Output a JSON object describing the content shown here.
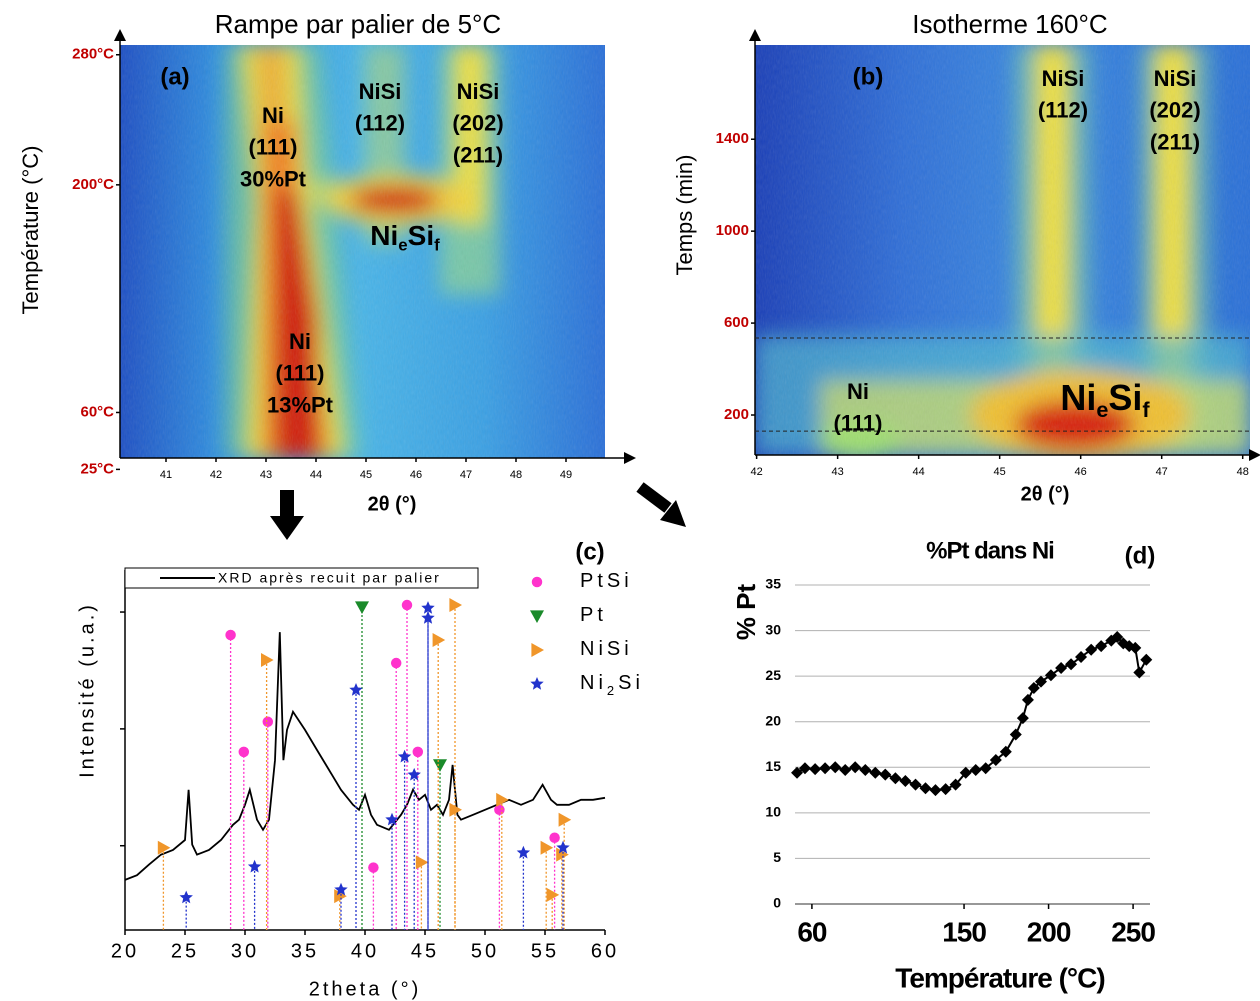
{
  "chart_data": [
    {
      "type": "heatmap",
      "title": "Rampe par palier de 5°C",
      "panel_label": "(a)",
      "x_label": "2θ (°)",
      "y_label": "Température (°C)",
      "xlim": [
        40.08,
        49.78
      ],
      "xticks": [
        41,
        42,
        43,
        44,
        45,
        46,
        47,
        48,
        49
      ],
      "ylim": [
        32,
        286
      ],
      "yticks": [
        {
          "value": 280,
          "label": "280°C"
        },
        {
          "value": 200,
          "label": "200°C"
        },
        {
          "value": 60,
          "label": "60°C"
        },
        {
          "value": 25,
          "label": "25°C"
        }
      ],
      "annotations": [
        {
          "lines": [
            "Ni",
            "(111)",
            "30%Pt"
          ]
        },
        {
          "lines": [
            "NiSi",
            "(112)"
          ]
        },
        {
          "lines": [
            "NiSi",
            "(202)",
            "(211)"
          ]
        },
        {
          "parts": [
            "Ni",
            "e",
            "Si",
            "f"
          ]
        },
        {
          "lines": [
            "Ni",
            "(111)",
            "13%Pt"
          ]
        }
      ]
    },
    {
      "type": "heatmap",
      "title": "Isotherme 160°C",
      "panel_label": "(b)",
      "x_label": "2θ (°)",
      "y_label": "Temps (min)",
      "xlim": [
        41.98,
        48.09
      ],
      "xticks": [
        42,
        43,
        44,
        45,
        46,
        47,
        48
      ],
      "ylim": [
        26,
        1810
      ],
      "yticks": [
        200,
        600,
        1000,
        1400
      ],
      "hlines": [
        535,
        130
      ],
      "annotations": [
        {
          "lines": [
            "NiSi",
            "(112)"
          ]
        },
        {
          "lines": [
            "NiSi",
            "(202)",
            "(211)"
          ]
        },
        {
          "lines": [
            "Ni",
            "(111)"
          ]
        },
        {
          "parts": [
            "Ni",
            "e",
            "Si",
            "f"
          ]
        }
      ]
    },
    {
      "type": "line",
      "panel_label": "(c)",
      "x_label": "2theta (°)",
      "y_label": "Intensité (u.a.)",
      "log_y": true,
      "ytick_labels": false,
      "xlim": [
        20,
        60
      ],
      "xticks": [
        20,
        25,
        30,
        35,
        40,
        45,
        50,
        55,
        60
      ],
      "ylim": [
        1.9,
        2290
      ],
      "yticks": [
        10,
        100,
        1000
      ],
      "series": [
        {
          "name": "XRD après recuit par palier",
          "color": "#000000",
          "x": [
            20,
            21,
            22,
            23,
            24,
            25,
            25.3,
            25.6,
            26,
            27,
            28,
            29,
            29.5,
            30,
            30.4,
            31,
            31.5,
            32,
            32.5,
            32.9,
            33.2,
            33.5,
            34,
            35,
            36,
            37,
            38,
            39,
            39.5,
            40,
            40.5,
            41,
            42,
            43,
            43.5,
            44,
            44.5,
            45,
            45.5,
            46,
            46.5,
            47,
            47.3,
            47.7,
            48,
            49,
            50,
            51,
            52,
            53,
            54,
            54.8,
            55.5,
            56,
            57,
            58,
            59,
            60
          ],
          "values": [
            5.1,
            5.6,
            6.9,
            8.4,
            9.2,
            11.2,
            30.1,
            10.2,
            8.4,
            9.2,
            11.2,
            15.1,
            16.7,
            22.4,
            30.1,
            16.7,
            13.7,
            16.7,
            54,
            674,
            54,
            98,
            140,
            98,
            66,
            44.6,
            30.1,
            22.4,
            20.3,
            27.3,
            18.4,
            15.1,
            13.7,
            18.4,
            22.4,
            30.1,
            24.7,
            27.3,
            20.3,
            22.4,
            18.4,
            24.7,
            49.2,
            18.4,
            16.7,
            18.4,
            20.3,
            22.4,
            24.7,
            22.4,
            24.7,
            33.2,
            24.7,
            22.4,
            22.4,
            24.7,
            24.7,
            25.7
          ]
        },
        {
          "name": "PtSi",
          "color": "#ff33cc",
          "marker": "circle",
          "drop_lines": true,
          "x": [
            28.8,
            29.9,
            31.9,
            40.7,
            42.6,
            43.5,
            44.4,
            51.2,
            55.8
          ],
          "values": [
            636,
            63.6,
            115,
            6.5,
            366,
            1148,
            63.6,
            20.3,
            11.7
          ]
        },
        {
          "name": "Pt",
          "color": "#1a8a2a",
          "marker": "triangle-down",
          "drop_lines": true,
          "x": [
            39.75,
            46.25
          ],
          "values": [
            1104,
            49.2
          ]
        },
        {
          "name": "NiSi",
          "color": "#f0962a",
          "marker": "triangle-right",
          "drop_lines": true,
          "x": [
            23.2,
            31.8,
            37.9,
            44.7,
            46.1,
            47.5,
            47.5,
            51.4,
            55.1,
            55.6,
            56.6,
            56.4
          ],
          "values": [
            9.6,
            389,
            3.7,
            7.2,
            576,
            1148,
            20.3,
            24.7,
            9.6,
            3.8,
            16.7,
            8.4
          ]
        },
        {
          "name": "Ni2Si",
          "color": "#2233cc",
          "marker": "star",
          "drop_lines": true,
          "x": [
            25.1,
            30.8,
            38.0,
            39.25,
            42.25,
            43.3,
            44.1,
            45.25,
            45.25,
            53.2,
            56.5
          ],
          "values": [
            3.6,
            6.6,
            4.2,
            215,
            16.7,
            57.7,
            40.4,
            1081,
            889,
            8.7,
            9.6
          ]
        }
      ]
    },
    {
      "type": "line",
      "title": "%Pt dans Ni",
      "panel_label": "(d)",
      "x_label": "Température (°C)",
      "y_label": "% Pt",
      "grid": true,
      "xlim": [
        50,
        260
      ],
      "xticks": [
        60,
        150,
        200,
        250
      ],
      "ylim": [
        0,
        35
      ],
      "yticks": [
        0,
        5,
        10,
        15,
        20,
        25,
        30,
        35
      ],
      "series": [
        {
          "color": "#000000",
          "marker": "diamond",
          "x": [
            51.2,
            55.9,
            61.9,
            67.8,
            73.8,
            79.7,
            85.6,
            91.6,
            97.5,
            103.4,
            109.4,
            115.3,
            121.3,
            127.2,
            133.1,
            139.1,
            145.0,
            151.0,
            156.9,
            162.8,
            168.8,
            174.7,
            180.6,
            184.8,
            187.8,
            191.3,
            195.5,
            201.4,
            207.4,
            213.3,
            219.2,
            225.2,
            231.1,
            237.1,
            240.6,
            244.2,
            247.7,
            251.3,
            253.7,
            257.8
          ],
          "values": [
            14.4,
            14.9,
            14.8,
            14.9,
            15.0,
            14.7,
            15.0,
            14.7,
            14.4,
            14.2,
            13.8,
            13.5,
            13.1,
            12.7,
            12.5,
            12.6,
            13.1,
            14.4,
            14.7,
            14.9,
            15.8,
            16.7,
            18.6,
            20.4,
            22.4,
            23.7,
            24.4,
            25.1,
            25.9,
            26.3,
            27.1,
            27.9,
            28.3,
            28.9,
            29.3,
            28.6,
            28.3,
            28.1,
            25.4,
            26.8
          ]
        }
      ]
    }
  ]
}
